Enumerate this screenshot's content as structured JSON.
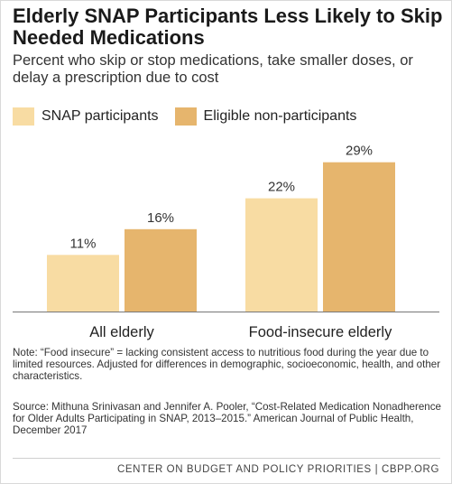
{
  "title": "Elderly SNAP Participants Less Likely to Skip Needed Medications",
  "subtitle": "Percent who skip or stop medications, take smaller doses, or delay a prescription due to cost",
  "note": "Note: “Food insecure” = lacking consistent access to nutritious food during the year due to limited resources. Adjusted for differences in demographic, socioeconomic, health, and other characteristics.",
  "source": "Source: Mithuna Srinivasan and Jennifer A. Pooler, “Cost-Related Medication Nonadherence for Older Adults Participating in SNAP, 2013–2015.” American Journal of Public Health, December 2017",
  "footer": "CENTER ON BUDGET AND POLICY PRIORITIES | CBPP.ORG",
  "colors": {
    "snap": "#f8dca3",
    "eligible": "#e6b56d",
    "baseline": "#777777"
  },
  "chart_data": {
    "type": "bar",
    "categories": [
      "All elderly",
      "Food-insecure elderly"
    ],
    "series": [
      {
        "name": "SNAP participants",
        "values": [
          11,
          22
        ]
      },
      {
        "name": "Eligible non-participants",
        "values": [
          16,
          29
        ]
      }
    ],
    "value_suffix": "%",
    "ylim": [
      0,
      30
    ],
    "grid": false,
    "legend": "top"
  }
}
